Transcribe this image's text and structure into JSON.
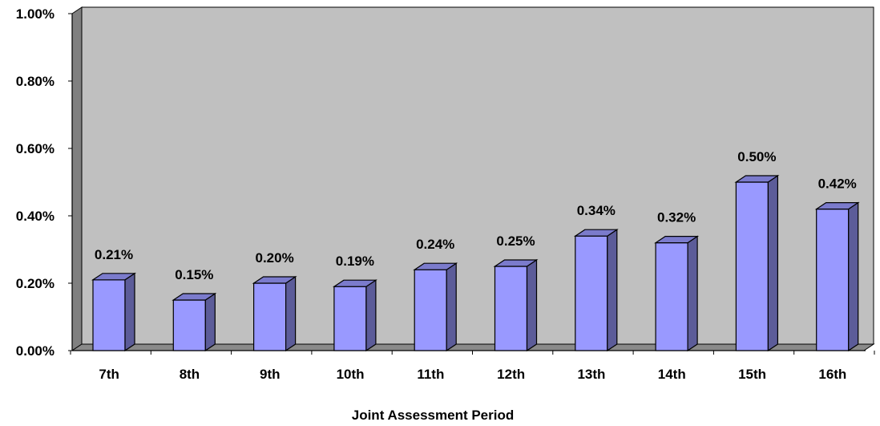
{
  "chart_data": {
    "type": "bar",
    "title": "",
    "xlabel": "Joint Assessment Period",
    "ylabel": "",
    "categories": [
      "7th",
      "8th",
      "9th",
      "10th",
      "11th",
      "12th",
      "13th",
      "14th",
      "15th",
      "16th"
    ],
    "values": [
      0.21,
      0.15,
      0.2,
      0.19,
      0.24,
      0.25,
      0.34,
      0.32,
      0.5,
      0.42
    ],
    "data_labels": [
      "0.21%",
      "0.15%",
      "0.20%",
      "0.19%",
      "0.24%",
      "0.25%",
      "0.34%",
      "0.32%",
      "0.50%",
      "0.42%"
    ],
    "ylim": [
      0,
      1.0
    ],
    "yticks": [
      0,
      0.2,
      0.4,
      0.6,
      0.8,
      1.0
    ],
    "ytick_labels": [
      "0.00%",
      "0.20%",
      "0.40%",
      "0.60%",
      "0.80%",
      "1.00%"
    ],
    "grid": false,
    "legend": "none",
    "style": "3d-column",
    "colors": {
      "bar_front": "#9999ff",
      "bar_side": "#5c5c99",
      "bar_top": "#7b7bcc",
      "plot_back": "#c0c0c0",
      "plot_wall": "#808080",
      "plot_floor": "#8a8a8a"
    }
  }
}
